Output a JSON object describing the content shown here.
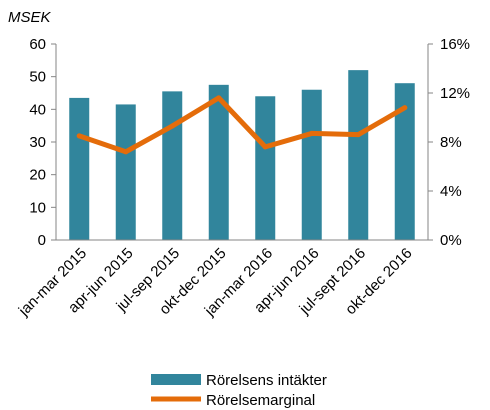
{
  "chart_data": {
    "type": "bar",
    "unit_label": "MSEK",
    "categories": [
      "jan-mar 2015",
      "apr-jun 2015",
      "jul-sep 2015",
      "okt-dec 2015",
      "jan-mar 2016",
      "apr-jun 2016",
      "jul-sept 2016",
      "okt-dec 2016"
    ],
    "series": [
      {
        "name": "Rörelsens intäkter",
        "type": "bar",
        "axis": "left",
        "color": "#31859C",
        "values": [
          43.5,
          41.5,
          45.5,
          47.5,
          44,
          46,
          52,
          48
        ]
      },
      {
        "name": "Rörelsemarginal",
        "type": "line",
        "axis": "right",
        "color": "#E46C0A",
        "values": [
          8.5,
          7.2,
          9.3,
          11.6,
          7.6,
          8.7,
          8.6,
          10.8
        ]
      }
    ],
    "left_axis": {
      "ylim": [
        0,
        60
      ],
      "ticks": [
        "0",
        "10",
        "20",
        "30",
        "40",
        "50",
        "60"
      ]
    },
    "right_axis": {
      "ylim": [
        0,
        16
      ],
      "ticks": [
        "0%",
        "4%",
        "8%",
        "12%",
        "16%"
      ]
    },
    "grid": false,
    "legend_position": "bottom-center"
  }
}
